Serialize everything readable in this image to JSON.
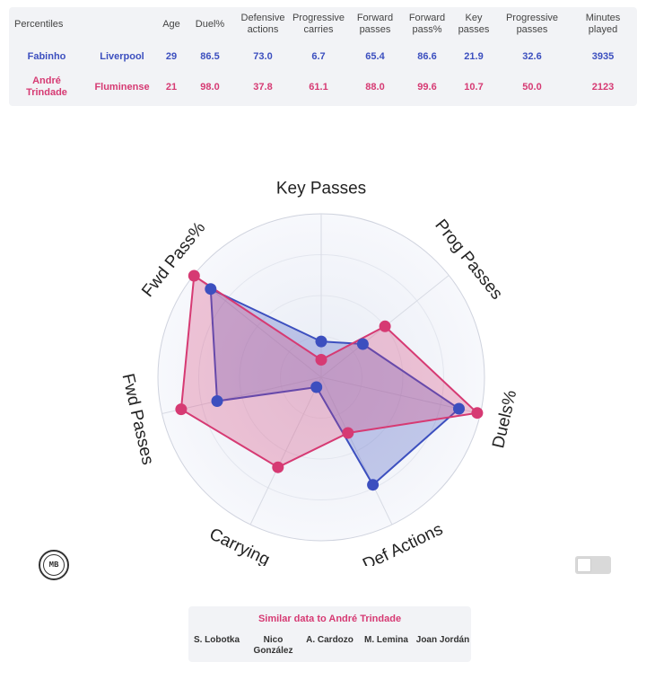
{
  "table": {
    "corner": "Percentiles",
    "headers": [
      "Age",
      "Duel%",
      "Defensive actions",
      "Progressive carries",
      "Forward passes",
      "Forward pass%",
      "Key passes",
      "Progressive passes",
      "Minutes played"
    ],
    "rows": [
      {
        "player": "Fabinho",
        "team": "Liverpool",
        "values": [
          "29",
          "86.5",
          "73.0",
          "6.7",
          "65.4",
          "86.6",
          "21.9",
          "32.6",
          "3935"
        ]
      },
      {
        "player": "André Trindade",
        "team": "Fluminense",
        "values": [
          "21",
          "98.0",
          "37.8",
          "61.1",
          "88.0",
          "99.6",
          "10.7",
          "50.0",
          "2123"
        ]
      }
    ]
  },
  "chart_data": {
    "type": "radar",
    "axes": [
      "Key Passes",
      "Prog Passes",
      "Duels%",
      "Def Actions",
      "Carrying",
      "Fwd Passes",
      "Fwd Pass%"
    ],
    "range": [
      0,
      100
    ],
    "series": [
      {
        "name": "Fabinho",
        "color": "#3c4fbf",
        "values": [
          21.9,
          32.6,
          86.5,
          73.0,
          6.7,
          65.4,
          86.6
        ]
      },
      {
        "name": "André Trindade",
        "color": "#d63a73",
        "values": [
          10.7,
          50.0,
          98.0,
          37.8,
          61.1,
          88.0,
          99.6
        ]
      }
    ]
  },
  "logo": {
    "text": "MB"
  },
  "similar": {
    "title": "Similar data to André Trindade",
    "players": [
      "S. Lobotka",
      "Nico González",
      "A. Cardozo",
      "M. Lemina",
      "Joan Jordán"
    ]
  }
}
